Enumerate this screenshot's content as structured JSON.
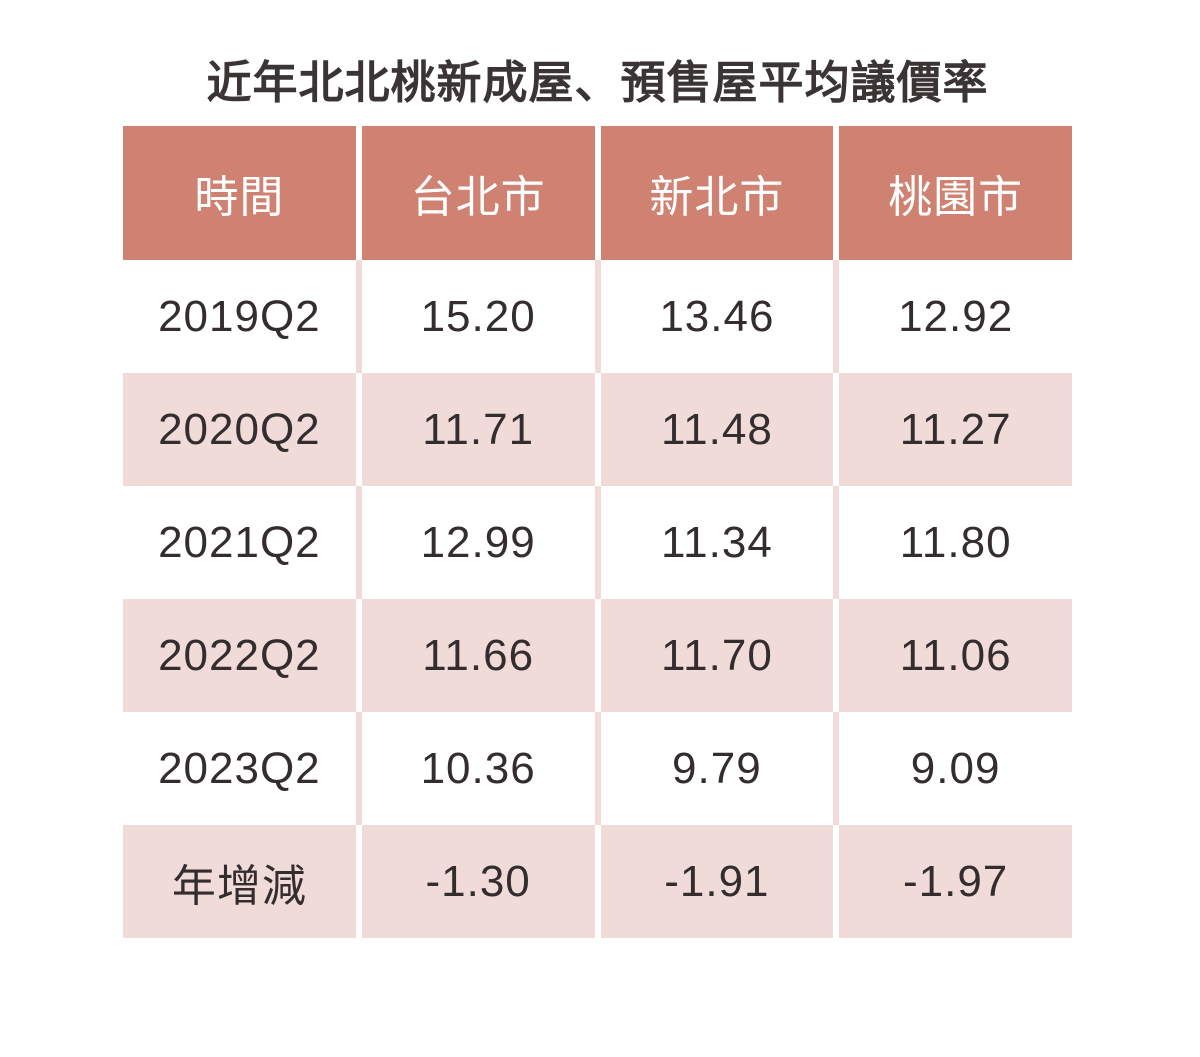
{
  "page": {
    "title": "近年北北桃新成屋、預售屋平均議價率"
  },
  "colors": {
    "header_bg": "#CF8271",
    "header_text": "#FFFFFF",
    "stripe_pink": "#F0DBD9",
    "row_white": "#FFFFFF",
    "title_text": "#3A3435",
    "cell_text": "#332D2E",
    "page_bg": "#FFFFFF"
  },
  "chart_data": {
    "type": "table",
    "title": "近年北北桃新成屋、預售屋平均議價率",
    "columns": [
      "時間",
      "台北市",
      "新北市",
      "桃園市"
    ],
    "rows": [
      [
        "2019Q2",
        "15.20",
        "13.46",
        "12.92"
      ],
      [
        "2020Q2",
        "11.71",
        "11.48",
        "11.27"
      ],
      [
        "2021Q2",
        "12.99",
        "11.34",
        "11.80"
      ],
      [
        "2022Q2",
        "11.66",
        "11.70",
        "11.06"
      ],
      [
        "2023Q2",
        "10.36",
        "9.79",
        "9.09"
      ],
      [
        "年增減",
        "-1.30",
        "-1.91",
        "-1.97"
      ]
    ],
    "layout": {
      "striping": "alternating white / light-pink rows",
      "separator_behavior": "column gaps are white in salmon/pink rows, light-pink in white rows"
    }
  }
}
